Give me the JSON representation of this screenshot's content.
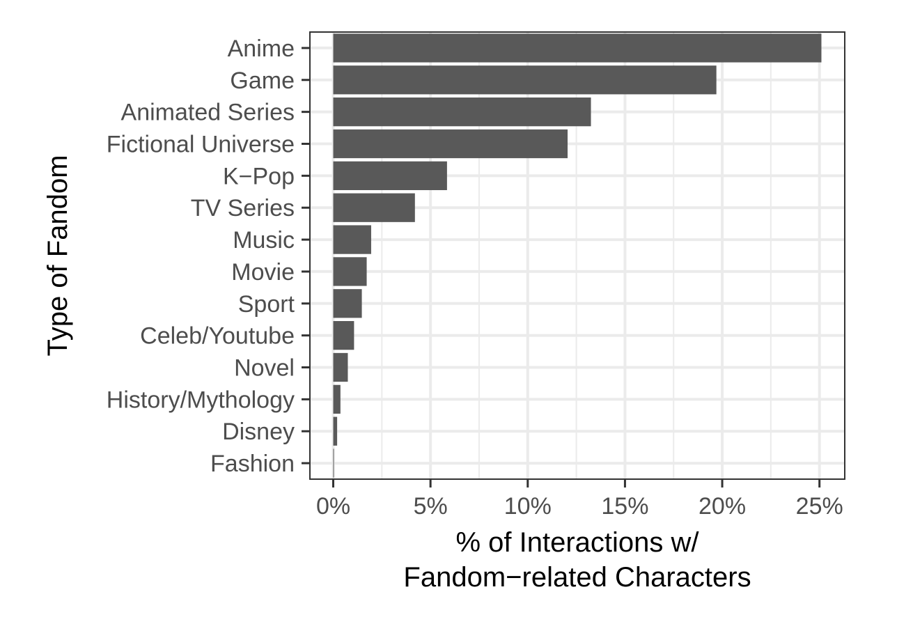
{
  "chart_data": {
    "type": "bar",
    "orientation": "horizontal",
    "categories": [
      "Anime",
      "Game",
      "Animated Series",
      "Fictional Universe",
      "K−Pop",
      "TV Series",
      "Music",
      "Movie",
      "Sport",
      "Celeb/Youtube",
      "Novel",
      "History/Mythology",
      "Disney",
      "Fashion"
    ],
    "values": [
      25.1,
      19.7,
      13.25,
      12.05,
      5.85,
      4.2,
      1.95,
      1.72,
      1.47,
      1.07,
      0.75,
      0.37,
      0.2,
      0.03
    ],
    "title": "",
    "xlabel": [
      "% of Interactions w/",
      "Fandom−related Characters"
    ],
    "ylabel": "Type of Fandom",
    "xlim": [
      -1.2,
      26.3
    ],
    "xticks": [
      0,
      5,
      10,
      15,
      20,
      25
    ],
    "xtick_labels": [
      "0%",
      "5%",
      "10%",
      "15%",
      "20%",
      "25%"
    ],
    "grid": true,
    "legend": "none",
    "colors": {
      "bar": "#595959",
      "grid": "#ebebeb",
      "panel_border": "#333333",
      "tick_label": "#4d4d4d",
      "axis_title": "#000000"
    }
  }
}
